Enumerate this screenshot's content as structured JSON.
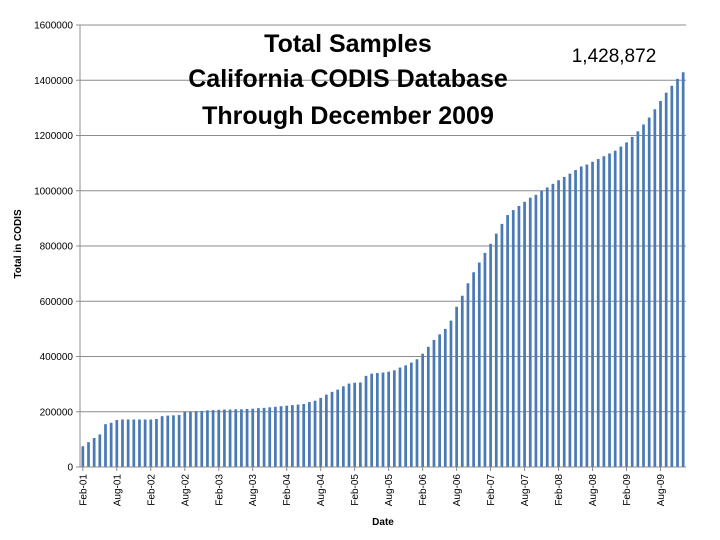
{
  "chart_data": {
    "type": "bar",
    "title_lines": [
      "Total Samples",
      "California CODIS Database",
      "Through December 2009"
    ],
    "xlabel": "Date",
    "ylabel": "Total in CODIS",
    "ylim": [
      0,
      1600000
    ],
    "yticks": [
      0,
      200000,
      400000,
      600000,
      800000,
      1000000,
      1200000,
      1400000,
      1600000
    ],
    "grid": true,
    "annotation": "1,428,872",
    "bar_color": "#4a7ab5",
    "grid_color": "#8c8c8c",
    "xtick_labels": [
      {
        "label": "Feb-01",
        "index": 0
      },
      {
        "label": "Aug-01",
        "index": 6
      },
      {
        "label": "Feb-02",
        "index": 12
      },
      {
        "label": "Aug-02",
        "index": 18
      },
      {
        "label": "Feb-03",
        "index": 24
      },
      {
        "label": "Aug-03",
        "index": 30
      },
      {
        "label": "Feb-04",
        "index": 36
      },
      {
        "label": "Aug-04",
        "index": 42
      },
      {
        "label": "Feb-05",
        "index": 48
      },
      {
        "label": "Aug-05",
        "index": 54
      },
      {
        "label": "Feb-06",
        "index": 60
      },
      {
        "label": "Aug-06",
        "index": 66
      },
      {
        "label": "Feb-07",
        "index": 72
      },
      {
        "label": "Aug-07",
        "index": 78
      },
      {
        "label": "Feb-08",
        "index": 84
      },
      {
        "label": "Aug-08",
        "index": 90
      },
      {
        "label": "Feb-09",
        "index": 96
      },
      {
        "label": "Aug-09",
        "index": 102
      }
    ],
    "values": [
      75000,
      90000,
      105000,
      118000,
      155000,
      160000,
      170000,
      172000,
      172000,
      172000,
      172000,
      172000,
      172000,
      174000,
      184000,
      186000,
      187000,
      188000,
      200000,
      201000,
      202000,
      203000,
      205000,
      206000,
      207000,
      208000,
      208000,
      209000,
      209000,
      210000,
      211000,
      213000,
      214000,
      216000,
      218000,
      220000,
      222000,
      224000,
      226000,
      228000,
      235000,
      240000,
      250000,
      262000,
      272000,
      280000,
      292000,
      302000,
      305000,
      306000,
      330000,
      338000,
      340000,
      342000,
      345000,
      350000,
      360000,
      368000,
      378000,
      390000,
      410000,
      435000,
      460000,
      480000,
      500000,
      530000,
      580000,
      620000,
      665000,
      705000,
      740000,
      775000,
      808000,
      845000,
      880000,
      912000,
      930000,
      945000,
      960000,
      975000,
      985000,
      1000000,
      1012000,
      1025000,
      1038000,
      1050000,
      1062000,
      1075000,
      1088000,
      1095000,
      1105000,
      1115000,
      1125000,
      1135000,
      1145000,
      1160000,
      1175000,
      1195000,
      1215000,
      1240000,
      1265000,
      1295000,
      1325000,
      1355000,
      1380000,
      1405000,
      1428872
    ]
  }
}
